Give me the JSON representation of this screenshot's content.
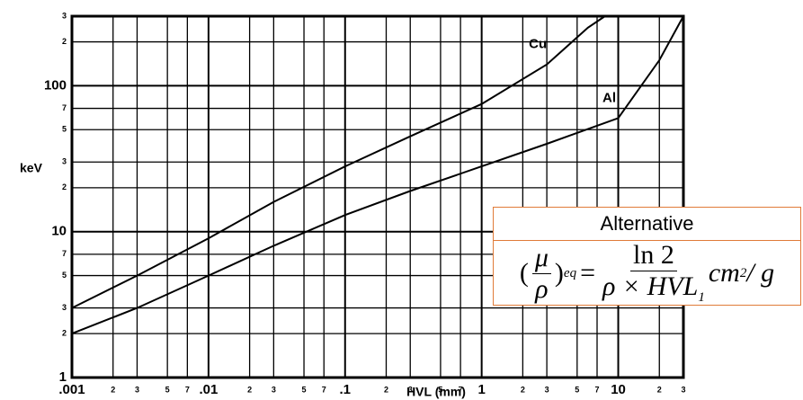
{
  "chart_data": {
    "type": "line",
    "x_label": "HVL (mm)",
    "y_label": "keV",
    "xscale": "log",
    "yscale": "log",
    "grid": true,
    "xlim": [
      0.001,
      30
    ],
    "ylim": [
      1,
      300
    ],
    "xticks": [
      {
        "value": 0.001,
        "label": ".001"
      },
      {
        "value": 0.002,
        "label": "2"
      },
      {
        "value": 0.003,
        "label": "3"
      },
      {
        "value": 0.005,
        "label": "5"
      },
      {
        "value": 0.007,
        "label": "7"
      },
      {
        "value": 0.01,
        "label": ".01"
      },
      {
        "value": 0.02,
        "label": "2"
      },
      {
        "value": 0.03,
        "label": "3"
      },
      {
        "value": 0.05,
        "label": "5"
      },
      {
        "value": 0.07,
        "label": "7"
      },
      {
        "value": 0.1,
        "label": ".1"
      },
      {
        "value": 0.2,
        "label": "2"
      },
      {
        "value": 0.3,
        "label": "3"
      },
      {
        "value": 0.5,
        "label": "5"
      },
      {
        "value": 0.7,
        "label": "7"
      },
      1,
      2,
      3,
      5,
      7,
      10,
      {
        "value": 20,
        "label": "2"
      },
      {
        "value": 30,
        "label": "3"
      }
    ],
    "yticks": [
      1,
      2,
      3,
      5,
      7,
      10,
      {
        "value": 20,
        "label": "2"
      },
      {
        "value": 30,
        "label": "3"
      },
      {
        "value": 50,
        "label": "5"
      },
      {
        "value": 70,
        "label": "7"
      },
      100,
      {
        "value": 200,
        "label": "2"
      },
      {
        "value": 300,
        "label": "3"
      }
    ],
    "series": [
      {
        "name": "Cu",
        "color": "#000000",
        "x": [
          0.001,
          0.003,
          0.01,
          0.03,
          0.1,
          0.3,
          1,
          3,
          6,
          8
        ],
        "values": [
          3,
          5,
          9,
          16,
          28,
          45,
          75,
          140,
          250,
          300
        ]
      },
      {
        "name": "Al",
        "color": "#000000",
        "x": [
          0.001,
          0.003,
          0.01,
          0.03,
          0.1,
          0.3,
          1,
          3,
          10,
          20,
          30
        ],
        "values": [
          2,
          3,
          5,
          8,
          13,
          19,
          28,
          40,
          60,
          150,
          300
        ]
      }
    ]
  },
  "box": {
    "title": "Alternative",
    "open": "(",
    "lhs_num": "μ",
    "lhs_den": "ρ",
    "close": ")",
    "lhs_sub": "eq",
    "equals": "=",
    "num": "ln 2",
    "den": "ρ × HVL",
    "den_sub": "1",
    "unit": "cm",
    "unit_sup": "2",
    "unit_tail": " / g"
  }
}
